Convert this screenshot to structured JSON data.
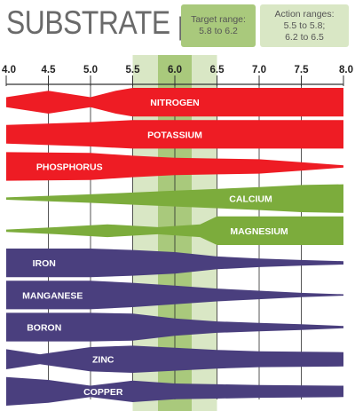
{
  "title": "SUBSTRATE pH",
  "legend": {
    "target": {
      "label": "Target range:",
      "value": "5.8 to 6.2",
      "color": "#a9c97c"
    },
    "action": {
      "label": "Action ranges:",
      "value1": "5.5 to 5.8;",
      "value2": "6.2 to 6.5",
      "color": "#d9e7c5"
    }
  },
  "colors": {
    "red": "#ee1c24",
    "green": "#7cac3c",
    "purple": "#4a3f7e",
    "target_band": "#a9c97c",
    "action_band": "#d9e7c5",
    "text": "#ffffff",
    "tick": "#333333"
  },
  "chart_data": {
    "type": "area",
    "x_axis": {
      "min": 4.0,
      "max": 8.0,
      "ticks": [
        "4.0",
        "4.5",
        "5.0",
        "5.5",
        "6.0",
        "6.5",
        "7.0",
        "7.5",
        "8.0"
      ],
      "position": "top"
    },
    "target_range": [
      5.8,
      6.2
    ],
    "action_ranges": [
      [
        5.5,
        5.8
      ],
      [
        6.2,
        6.5
      ]
    ],
    "series": [
      {
        "name": "NITROGEN",
        "color": "red",
        "x": [
          4.0,
          4.5,
          5.0,
          5.3,
          5.5,
          6.0,
          6.5,
          7.0,
          7.5,
          8.0
        ],
        "availability": [
          0.35,
          0.8,
          0.35,
          0.8,
          1.0,
          1.0,
          1.0,
          1.0,
          1.0,
          1.0
        ]
      },
      {
        "name": "POTASSIUM",
        "color": "red",
        "x": [
          4.0,
          5.0,
          5.5,
          6.0,
          7.0,
          8.0
        ],
        "availability": [
          0.65,
          0.85,
          1.0,
          1.0,
          1.0,
          1.0
        ]
      },
      {
        "name": "PHOSPHORUS",
        "color": "red",
        "x": [
          4.0,
          5.0,
          5.5,
          6.0,
          6.5,
          7.0,
          7.5,
          8.0
        ],
        "availability": [
          1.0,
          0.95,
          0.75,
          0.6,
          0.55,
          0.5,
          0.3,
          0.08
        ]
      },
      {
        "name": "CALCIUM",
        "color": "green",
        "x": [
          4.0,
          5.0,
          6.0,
          7.0,
          7.5,
          8.0
        ],
        "availability": [
          0.08,
          0.3,
          0.55,
          0.8,
          0.95,
          1.0
        ]
      },
      {
        "name": "MAGNESIUM",
        "color": "green",
        "x": [
          4.0,
          4.6,
          5.2,
          5.8,
          6.3,
          6.5,
          7.0,
          8.0
        ],
        "availability": [
          0.08,
          0.25,
          0.45,
          0.25,
          0.45,
          1.0,
          1.0,
          1.0
        ]
      },
      {
        "name": "IRON",
        "color": "purple",
        "x": [
          4.0,
          5.0,
          5.5,
          6.0,
          6.5,
          7.0,
          7.5,
          8.0
        ],
        "availability": [
          1.0,
          1.0,
          0.9,
          0.75,
          0.45,
          0.3,
          0.2,
          0.12
        ]
      },
      {
        "name": "MANGANESE",
        "color": "purple",
        "x": [
          4.0,
          5.0,
          5.5,
          6.0,
          6.5,
          7.0,
          7.5,
          8.0
        ],
        "availability": [
          1.0,
          1.0,
          0.85,
          0.65,
          0.45,
          0.3,
          0.15,
          0.05
        ]
      },
      {
        "name": "BORON",
        "color": "purple",
        "x": [
          4.0,
          5.0,
          5.5,
          6.0,
          6.5,
          7.0,
          7.5,
          8.0
        ],
        "availability": [
          1.0,
          1.0,
          0.95,
          0.6,
          0.4,
          0.3,
          0.2,
          0.08
        ]
      },
      {
        "name": "ZINC",
        "color": "purple",
        "x": [
          4.0,
          4.4,
          5.0,
          5.5,
          6.0,
          6.5,
          7.0,
          8.0
        ],
        "availability": [
          0.7,
          0.35,
          0.85,
          0.95,
          0.8,
          0.65,
          0.55,
          0.5
        ]
      },
      {
        "name": "COPPER",
        "color": "purple",
        "x": [
          4.0,
          4.5,
          5.0,
          5.5,
          6.0,
          6.5,
          7.0,
          8.0
        ],
        "availability": [
          1.0,
          0.8,
          0.4,
          0.75,
          0.55,
          0.5,
          0.45,
          0.4
        ]
      }
    ]
  }
}
